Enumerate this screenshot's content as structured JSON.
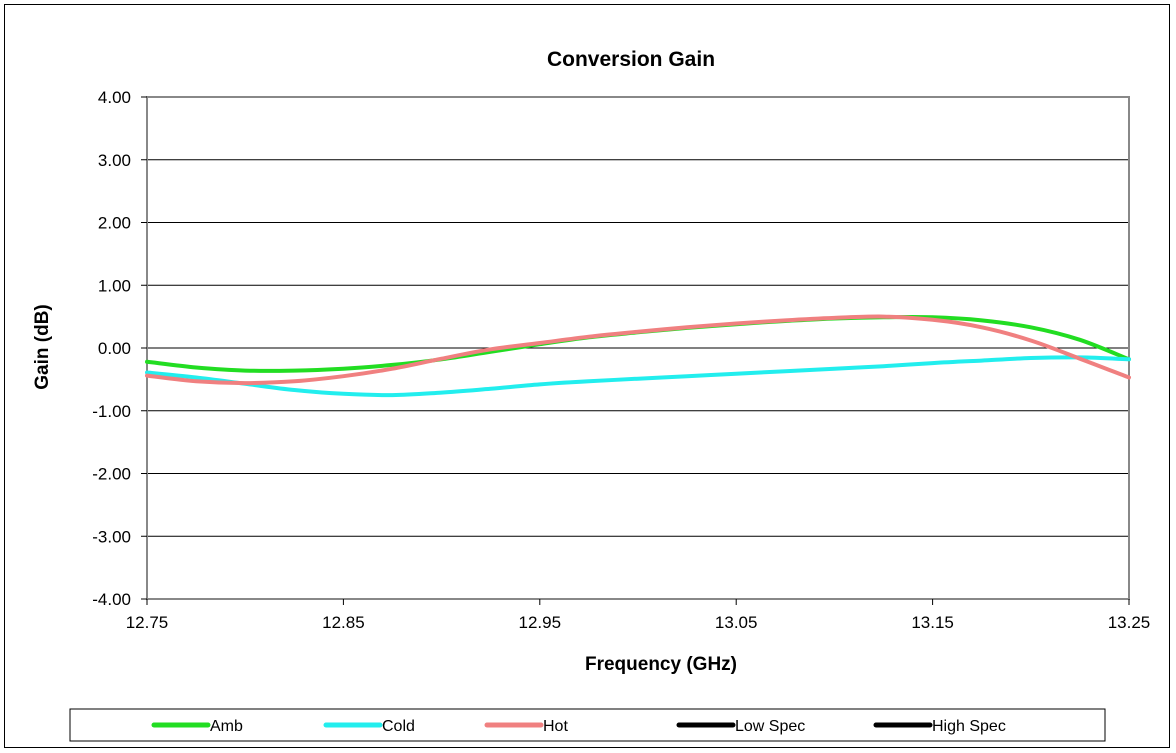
{
  "chart_data": {
    "type": "line",
    "title": "Conversion Gain",
    "xlabel": "Frequency (GHz)",
    "ylabel": "Gain (dB)",
    "xlim": [
      12.75,
      13.25
    ],
    "ylim": [
      -4.0,
      4.0
    ],
    "x_ticks": [
      "12.75",
      "12.85",
      "12.95",
      "13.05",
      "13.15",
      "13.25"
    ],
    "y_ticks": [
      "4.00",
      "3.00",
      "2.00",
      "1.00",
      "0.00",
      "-1.00",
      "-2.00",
      "-3.00",
      "-4.00"
    ],
    "grid": "horizontal",
    "legend_position": "bottom",
    "series": [
      {
        "name": "Amb",
        "color": "#22dd22",
        "x": [
          12.75,
          12.775,
          12.8,
          12.825,
          12.85,
          12.875,
          12.9,
          12.925,
          12.95,
          12.975,
          13.0,
          13.025,
          13.05,
          13.075,
          13.1,
          13.125,
          13.15,
          13.175,
          13.2,
          13.225,
          13.25
        ],
        "y": [
          -0.22,
          -0.31,
          -0.36,
          -0.36,
          -0.33,
          -0.27,
          -0.18,
          -0.06,
          0.06,
          0.17,
          0.25,
          0.32,
          0.38,
          0.43,
          0.47,
          0.49,
          0.49,
          0.44,
          0.33,
          0.13,
          -0.18
        ]
      },
      {
        "name": "Cold",
        "color": "#22eeee",
        "x": [
          12.75,
          12.775,
          12.8,
          12.825,
          12.85,
          12.875,
          12.9,
          12.925,
          12.95,
          12.975,
          13.0,
          13.025,
          13.05,
          13.075,
          13.1,
          13.125,
          13.15,
          13.175,
          13.2,
          13.225,
          13.25
        ],
        "y": [
          -0.39,
          -0.47,
          -0.57,
          -0.67,
          -0.73,
          -0.75,
          -0.71,
          -0.65,
          -0.58,
          -0.53,
          -0.49,
          -0.45,
          -0.41,
          -0.37,
          -0.33,
          -0.29,
          -0.24,
          -0.2,
          -0.16,
          -0.15,
          -0.18
        ]
      },
      {
        "name": "Hot",
        "color": "#f08080",
        "x": [
          12.75,
          12.775,
          12.8,
          12.825,
          12.85,
          12.875,
          12.9,
          12.925,
          12.95,
          12.975,
          13.0,
          13.025,
          13.05,
          13.075,
          13.1,
          13.125,
          13.15,
          13.175,
          13.2,
          13.225,
          13.25
        ],
        "y": [
          -0.44,
          -0.53,
          -0.56,
          -0.53,
          -0.45,
          -0.33,
          -0.17,
          -0.02,
          0.08,
          0.18,
          0.26,
          0.33,
          0.39,
          0.44,
          0.48,
          0.5,
          0.45,
          0.33,
          0.12,
          -0.17,
          -0.47
        ]
      },
      {
        "name": "Low Spec",
        "color": "#000000",
        "x": [],
        "y": []
      },
      {
        "name": "High Spec",
        "color": "#000000",
        "x": [],
        "y": []
      }
    ]
  }
}
